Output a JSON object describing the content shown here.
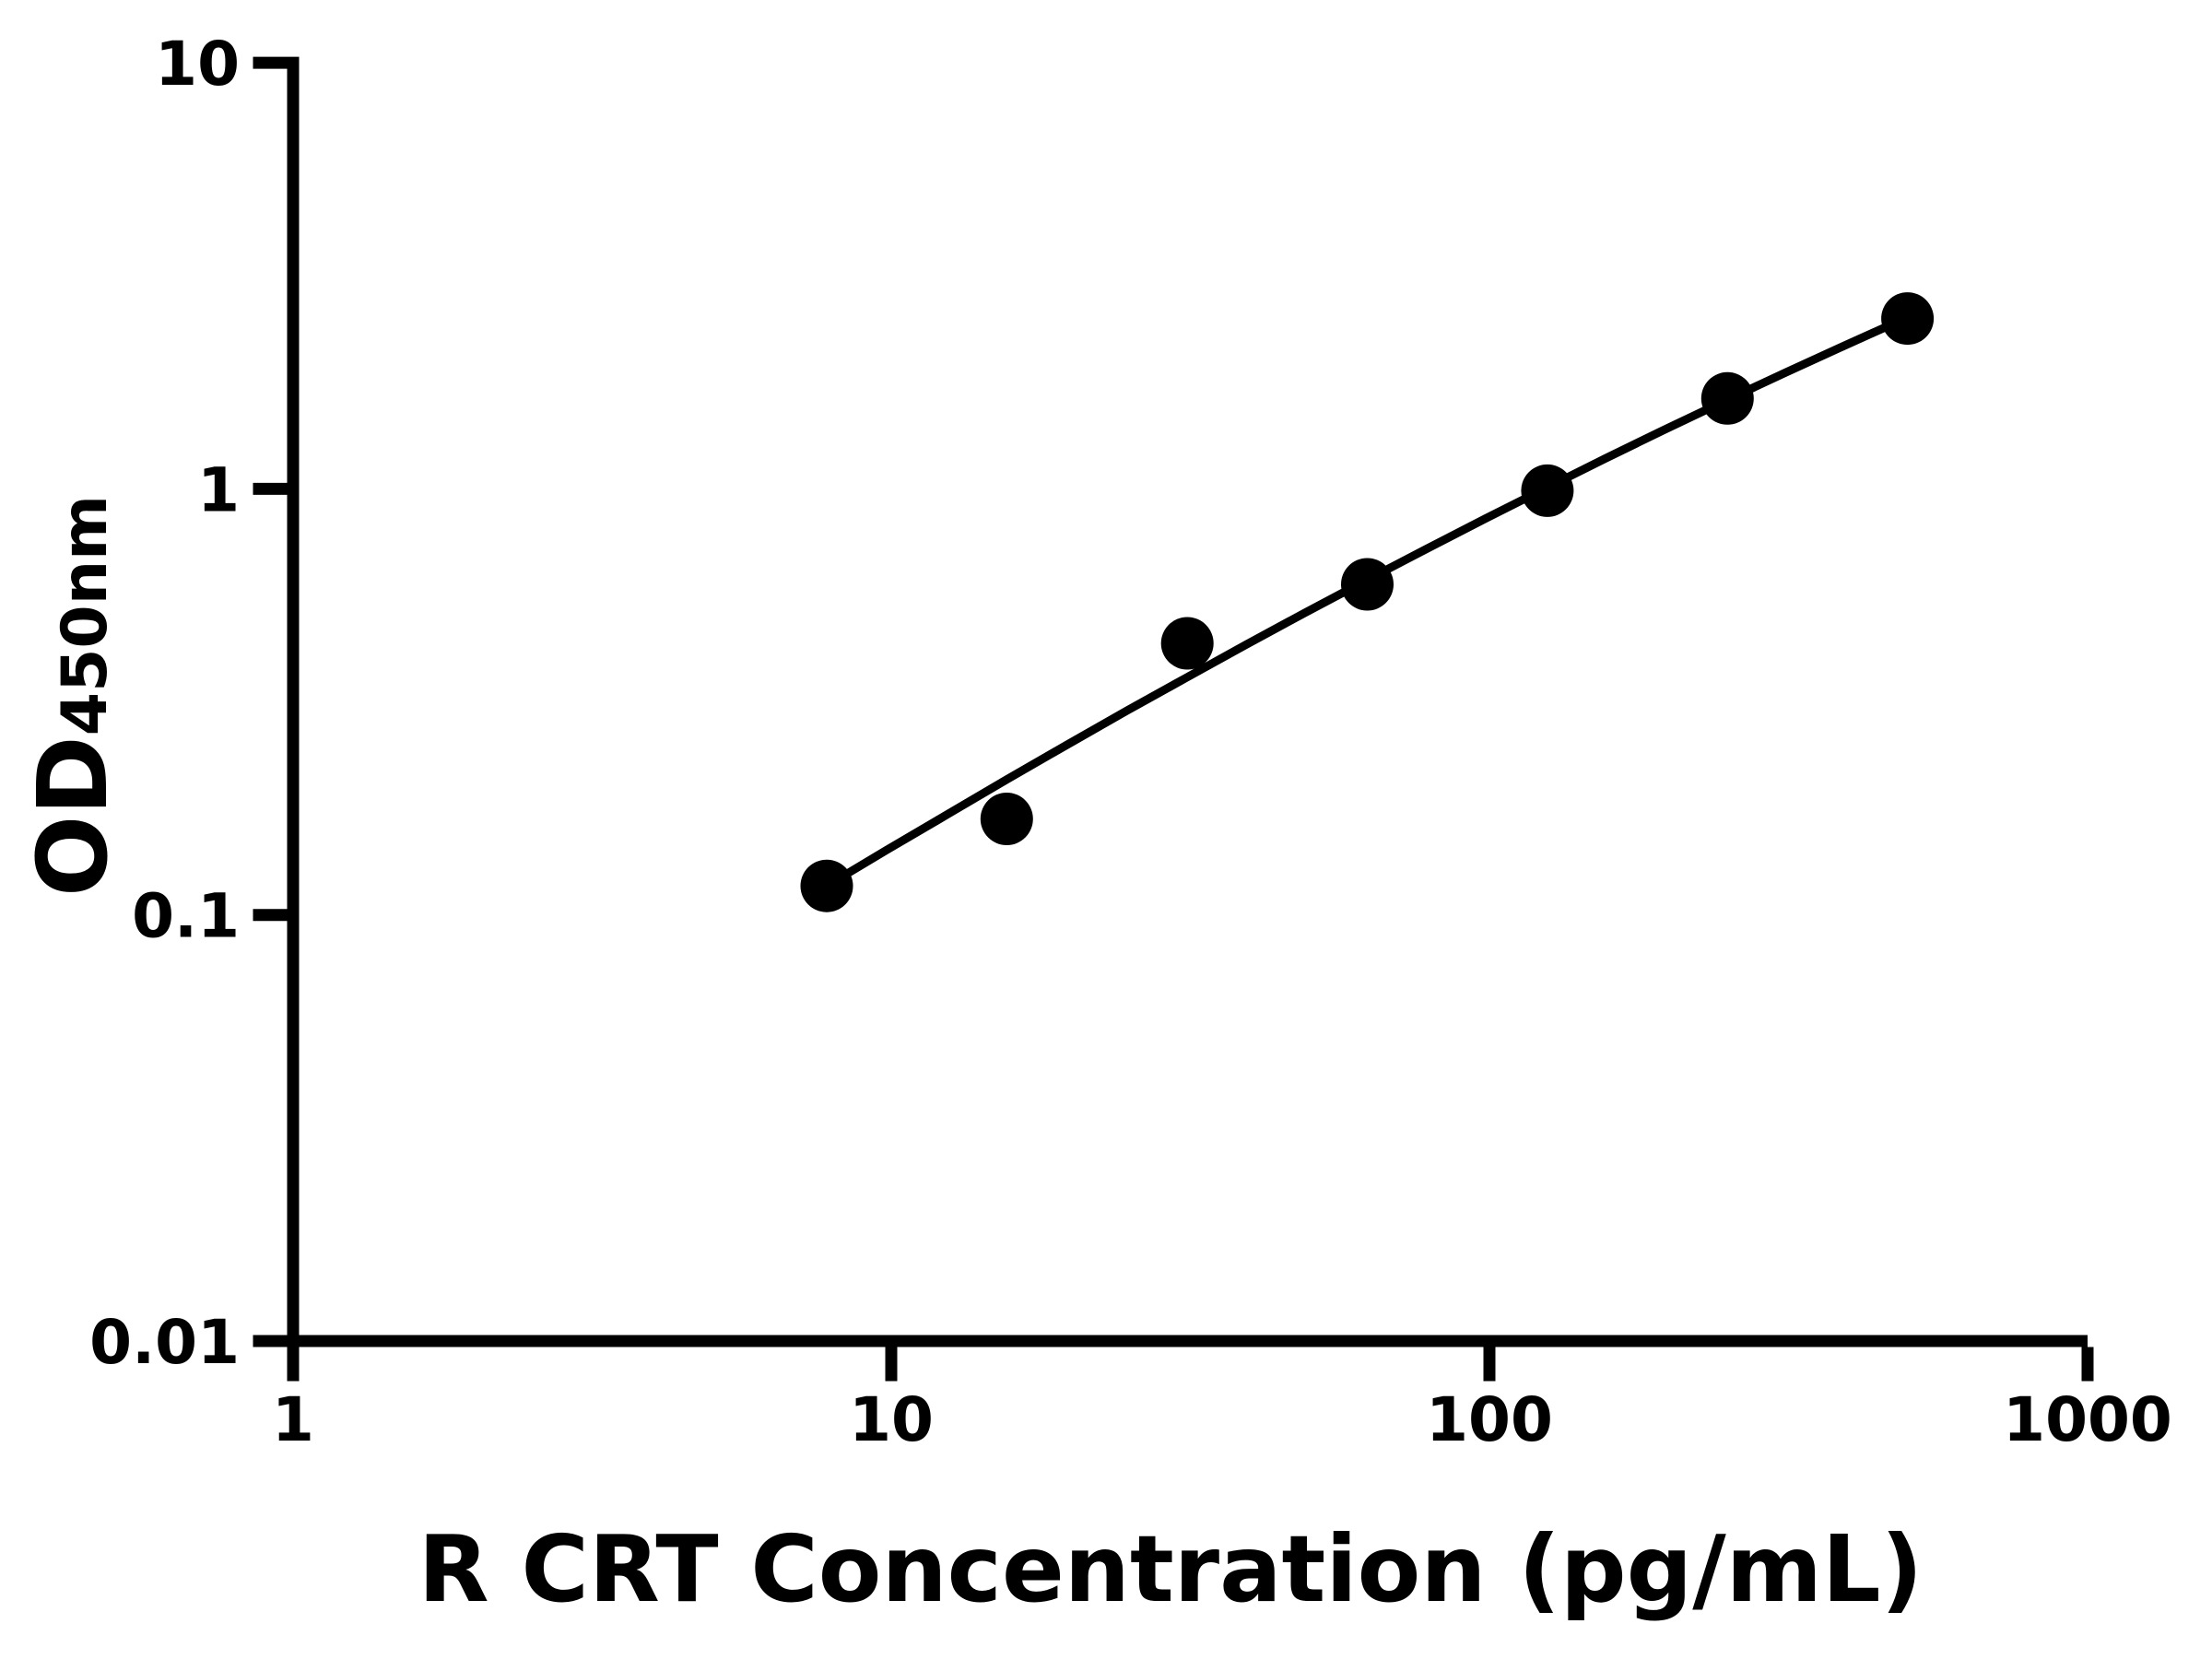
{
  "chart_data": {
    "type": "scatter",
    "title": "",
    "xlabel": "R CRT Concentration (pg/mL)",
    "ylabel_main": "OD",
    "ylabel_sub": "450nm",
    "x_scale": "log",
    "y_scale": "log",
    "xlim": [
      1,
      1000
    ],
    "ylim": [
      0.01,
      10
    ],
    "grid": false,
    "legend": null,
    "x_ticks": {
      "values": [
        1,
        10,
        100,
        1000
      ],
      "labels": [
        "1",
        "10",
        "100",
        "1000"
      ]
    },
    "y_ticks": {
      "values": [
        10,
        1,
        0.1,
        0.01
      ],
      "labels": [
        "10",
        "1",
        "0.1",
        "0.01"
      ]
    },
    "series": [
      {
        "name": "standard-curve-points",
        "marker": "circle",
        "marker_radius_px": 28.5,
        "color": "#000000",
        "x": [
          7.8,
          15.6,
          31.25,
          62.5,
          125,
          250,
          500
        ],
        "y": [
          0.117,
          0.168,
          0.434,
          0.597,
          0.99,
          1.63,
          2.51
        ]
      }
    ],
    "fit_curve": {
      "name": "four-parameter-logistic-fit",
      "color": "#000000",
      "points": [
        [
          7.8,
          0.117
        ],
        [
          9.82,
          0.142
        ],
        [
          12.4,
          0.172
        ],
        [
          15.6,
          0.208
        ],
        [
          19.6,
          0.25
        ],
        [
          24.7,
          0.301
        ],
        [
          31.1,
          0.36
        ],
        [
          39.2,
          0.431
        ],
        [
          49.3,
          0.513
        ],
        [
          62.1,
          0.609
        ],
        [
          78.2,
          0.721
        ],
        [
          98.4,
          0.851
        ],
        [
          124,
          1.002
        ],
        [
          156,
          1.177
        ],
        [
          196,
          1.376
        ],
        [
          247,
          1.606
        ],
        [
          311,
          1.868
        ],
        [
          392,
          2.167
        ],
        [
          493,
          2.506
        ]
      ]
    },
    "colors": {
      "background": "#ffffff",
      "foreground": "#000000"
    }
  }
}
